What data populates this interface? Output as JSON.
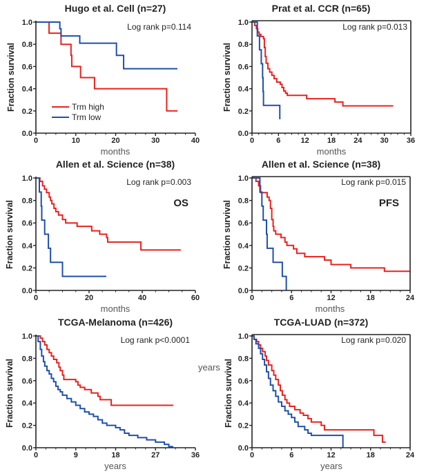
{
  "colors": {
    "high": "#e8211d",
    "low": "#1f4fa8",
    "axis": "#222222"
  },
  "legend": {
    "high": "Trm high",
    "low": "Trm low"
  },
  "stray_label": "years",
  "chart_data": [
    {
      "type": "line",
      "subtype": "kaplan-meier",
      "title": "Hugo et al. Cell (n=27)",
      "pvalue": "Log rank p=0.114",
      "annotation": "",
      "xlabel": "months",
      "ylabel": "Fraction survival",
      "xlim": [
        0,
        40
      ],
      "xticks": [
        0,
        10,
        20,
        30,
        40
      ],
      "ylim": [
        0,
        1
      ],
      "yticks": [
        "0.0",
        "0.2",
        "0.4",
        "0.6",
        "0.8",
        "1.0"
      ],
      "series": [
        {
          "name": "Trm high",
          "end": 35.5,
          "steps": [
            [
              0,
              1
            ],
            [
              3.3,
              0.9
            ],
            [
              6.3,
              0.8
            ],
            [
              8.8,
              0.7
            ],
            [
              9,
              0.6
            ],
            [
              11.2,
              0.5
            ],
            [
              14.7,
              0.4
            ],
            [
              32.8,
              0.2
            ]
          ]
        },
        {
          "name": "Trm low",
          "end": 35.5,
          "steps": [
            [
              0,
              1
            ],
            [
              6,
              0.94
            ],
            [
              6.3,
              0.875
            ],
            [
              11,
              0.81
            ],
            [
              20.2,
              0.7
            ],
            [
              22,
              0.58
            ]
          ]
        }
      ]
    },
    {
      "type": "line",
      "subtype": "kaplan-meier",
      "title": "Prat et al. CCR (n=65)",
      "pvalue": "Log rank p=0.013",
      "annotation": "",
      "xlabel": "months",
      "ylabel": "Fraction survival",
      "xlim": [
        0,
        36
      ],
      "xticks": [
        0,
        6,
        12,
        18,
        24,
        30,
        36
      ],
      "ylim": [
        0,
        1
      ],
      "yticks": [
        "0.0",
        "0.2",
        "0.4",
        "0.6",
        "0.8",
        "1.0"
      ],
      "series": [
        {
          "name": "Trm high",
          "end": 32,
          "steps": [
            [
              0,
              1
            ],
            [
              0.6,
              0.97
            ],
            [
              1,
              0.94
            ],
            [
              1.3,
              0.91
            ],
            [
              1.6,
              0.89
            ],
            [
              2,
              0.87
            ],
            [
              2.6,
              0.85
            ],
            [
              2.8,
              0.77
            ],
            [
              3,
              0.69
            ],
            [
              3.2,
              0.63
            ],
            [
              3.6,
              0.58
            ],
            [
              4,
              0.55
            ],
            [
              4.5,
              0.52
            ],
            [
              5,
              0.49
            ],
            [
              5.6,
              0.46
            ],
            [
              6.4,
              0.44
            ],
            [
              6.8,
              0.41
            ],
            [
              7.2,
              0.38
            ],
            [
              7.6,
              0.36
            ],
            [
              8,
              0.34
            ],
            [
              12.4,
              0.31
            ],
            [
              18.8,
              0.28
            ],
            [
              20.6,
              0.245
            ]
          ]
        },
        {
          "name": "Trm low",
          "end": 6.3,
          "steps": [
            [
              0,
              1
            ],
            [
              1.2,
              0.875
            ],
            [
              1.7,
              0.75
            ],
            [
              2.1,
              0.625
            ],
            [
              2.4,
              0.5
            ],
            [
              2.5,
              0.375
            ],
            [
              2.6,
              0.25
            ],
            [
              6.3,
              0.125
            ]
          ]
        }
      ]
    },
    {
      "type": "line",
      "subtype": "kaplan-meier",
      "title": "Allen et al. Science (n=38)",
      "pvalue": "Log rank p=0.003",
      "annotation": "OS",
      "xlabel": "months",
      "ylabel": "Fraction survival",
      "xlim": [
        0,
        60
      ],
      "xticks": [
        0,
        20,
        40,
        60
      ],
      "ylim": [
        0,
        1
      ],
      "yticks": [
        "0.0",
        "0.2",
        "0.4",
        "0.6",
        "0.8",
        "1.0"
      ],
      "series": [
        {
          "name": "Trm high",
          "end": 54.5,
          "steps": [
            [
              0,
              1
            ],
            [
              1.5,
              0.97
            ],
            [
              2.5,
              0.93
            ],
            [
              3.2,
              0.9
            ],
            [
              4,
              0.87
            ],
            [
              5,
              0.83
            ],
            [
              5.5,
              0.8
            ],
            [
              6,
              0.77
            ],
            [
              6.8,
              0.73
            ],
            [
              7.5,
              0.7
            ],
            [
              8.5,
              0.67
            ],
            [
              10,
              0.63
            ],
            [
              11.2,
              0.6
            ],
            [
              15.5,
              0.57
            ],
            [
              21,
              0.53
            ],
            [
              24,
              0.5
            ],
            [
              26.6,
              0.47
            ],
            [
              27,
              0.43
            ],
            [
              39.5,
              0.36
            ]
          ]
        },
        {
          "name": "Trm low",
          "end": 26.5,
          "steps": [
            [
              0,
              1
            ],
            [
              1.3,
              0.875
            ],
            [
              2,
              0.75
            ],
            [
              2.2,
              0.625
            ],
            [
              3.3,
              0.5
            ],
            [
              4.7,
              0.375
            ],
            [
              5.5,
              0.25
            ],
            [
              10,
              0.125
            ]
          ]
        }
      ]
    },
    {
      "type": "line",
      "subtype": "kaplan-meier",
      "title": "Allen et al. Science (n=38)",
      "pvalue": "Log rank p=0.015",
      "annotation": "PFS",
      "xlabel": "months",
      "ylabel": "Fraction survival",
      "xlim": [
        0,
        24
      ],
      "xticks": [
        0,
        6,
        12,
        18,
        24
      ],
      "ylim": [
        0,
        1
      ],
      "yticks": [
        "0.0",
        "0.2",
        "0.4",
        "0.6",
        "0.8",
        "1.0"
      ],
      "series": [
        {
          "name": "Trm high",
          "end": 24,
          "steps": [
            [
              0,
              1
            ],
            [
              0.6,
              0.97
            ],
            [
              1,
              0.93
            ],
            [
              1.3,
              0.87
            ],
            [
              2.3,
              0.83
            ],
            [
              2.6,
              0.8
            ],
            [
              2.8,
              0.73
            ],
            [
              3,
              0.63
            ],
            [
              3.2,
              0.57
            ],
            [
              3.3,
              0.53
            ],
            [
              3.6,
              0.5
            ],
            [
              4.4,
              0.47
            ],
            [
              5,
              0.43
            ],
            [
              5.3,
              0.4
            ],
            [
              6.3,
              0.37
            ],
            [
              6.8,
              0.33
            ],
            [
              8,
              0.3
            ],
            [
              11,
              0.27
            ],
            [
              12,
              0.23
            ],
            [
              15,
              0.2
            ],
            [
              20.1,
              0.17
            ]
          ]
        },
        {
          "name": "Trm low",
          "end": 5.2,
          "steps": [
            [
              0,
              1
            ],
            [
              1.2,
              0.875
            ],
            [
              1.5,
              0.75
            ],
            [
              1.7,
              0.625
            ],
            [
              2.2,
              0.5
            ],
            [
              2.3,
              0.375
            ],
            [
              3.2,
              0.25
            ],
            [
              4.6,
              0.125
            ],
            [
              5.2,
              0
            ]
          ]
        }
      ]
    },
    {
      "type": "line",
      "subtype": "kaplan-meier",
      "title": "TCGA-Melanoma (n=426)",
      "pvalue": "Log rank p<0.0001",
      "annotation": "",
      "xlabel": "years",
      "ylabel": "Fraction survival",
      "xlim": [
        0,
        36
      ],
      "xticks": [
        0,
        9,
        18,
        27,
        36
      ],
      "ylim": [
        0,
        1
      ],
      "yticks": [
        "0.0",
        "0.2",
        "0.4",
        "0.6",
        "0.8",
        "1.0"
      ],
      "series": [
        {
          "name": "Trm high",
          "end": 31,
          "steps": [
            [
              0,
              1
            ],
            [
              1,
              0.98
            ],
            [
              1.5,
              0.95
            ],
            [
              2,
              0.92
            ],
            [
              2.5,
              0.88
            ],
            [
              3,
              0.85
            ],
            [
              3.5,
              0.82
            ],
            [
              4,
              0.79
            ],
            [
              4.7,
              0.76
            ],
            [
              5.2,
              0.72
            ],
            [
              5.5,
              0.69
            ],
            [
              6,
              0.65
            ],
            [
              6.3,
              0.61
            ],
            [
              9,
              0.59
            ],
            [
              9.5,
              0.56
            ],
            [
              10,
              0.54
            ],
            [
              11,
              0.52
            ],
            [
              12.5,
              0.49
            ],
            [
              14,
              0.46
            ],
            [
              14.5,
              0.43
            ],
            [
              17,
              0.38
            ]
          ]
        },
        {
          "name": "Trm low",
          "end": 31,
          "steps": [
            [
              0,
              1
            ],
            [
              0.5,
              0.95
            ],
            [
              1,
              0.88
            ],
            [
              1.3,
              0.82
            ],
            [
              1.7,
              0.77
            ],
            [
              2,
              0.73
            ],
            [
              2.5,
              0.69
            ],
            [
              3,
              0.66
            ],
            [
              3.5,
              0.62
            ],
            [
              4,
              0.59
            ],
            [
              4.5,
              0.55
            ],
            [
              5,
              0.52
            ],
            [
              5.5,
              0.5
            ],
            [
              6,
              0.47
            ],
            [
              7,
              0.44
            ],
            [
              8,
              0.41
            ],
            [
              9,
              0.38
            ],
            [
              10,
              0.35
            ],
            [
              11,
              0.32
            ],
            [
              12,
              0.3
            ],
            [
              13,
              0.28
            ],
            [
              14,
              0.25
            ],
            [
              15,
              0.22
            ],
            [
              16,
              0.2
            ],
            [
              18,
              0.18
            ],
            [
              19,
              0.16
            ],
            [
              20,
              0.13
            ],
            [
              21,
              0.11
            ],
            [
              23,
              0.09
            ],
            [
              25,
              0.07
            ],
            [
              27,
              0.05
            ],
            [
              29,
              0.03
            ],
            [
              30,
              0.01
            ]
          ]
        }
      ]
    },
    {
      "type": "line",
      "subtype": "kaplan-meier",
      "title": "TCGA-LUAD (n=372)",
      "pvalue": "Log rank p=0.020",
      "annotation": "",
      "xlabel": "years",
      "ylabel": "Fraction survival",
      "xlim": [
        0,
        24
      ],
      "xticks": [
        0,
        6,
        12,
        18,
        24
      ],
      "ylim": [
        0,
        1
      ],
      "yticks": [
        "0.0",
        "0.2",
        "0.4",
        "0.6",
        "0.8",
        "1.0"
      ],
      "series": [
        {
          "name": "Trm high",
          "end": 20.3,
          "steps": [
            [
              0,
              1
            ],
            [
              0.3,
              0.97
            ],
            [
              0.7,
              0.95
            ],
            [
              1,
              0.92
            ],
            [
              1.3,
              0.89
            ],
            [
              1.6,
              0.86
            ],
            [
              2,
              0.82
            ],
            [
              2.2,
              0.78
            ],
            [
              2.5,
              0.74
            ],
            [
              3,
              0.69
            ],
            [
              3.3,
              0.65
            ],
            [
              3.6,
              0.61
            ],
            [
              4,
              0.56
            ],
            [
              4.3,
              0.51
            ],
            [
              4.6,
              0.47
            ],
            [
              5,
              0.43
            ],
            [
              5.3,
              0.4
            ],
            [
              5.7,
              0.37
            ],
            [
              6.5,
              0.34
            ],
            [
              7.3,
              0.31
            ],
            [
              7.8,
              0.29
            ],
            [
              8.5,
              0.26
            ],
            [
              9,
              0.23
            ],
            [
              10.5,
              0.2
            ],
            [
              11,
              0.16
            ],
            [
              18.5,
              0.11
            ],
            [
              19.8,
              0.05
            ]
          ]
        },
        {
          "name": "Trm low",
          "end": 13.8,
          "steps": [
            [
              0,
              1
            ],
            [
              0.3,
              0.97
            ],
            [
              0.6,
              0.93
            ],
            [
              1,
              0.89
            ],
            [
              1.3,
              0.84
            ],
            [
              1.6,
              0.79
            ],
            [
              1.9,
              0.74
            ],
            [
              2.2,
              0.68
            ],
            [
              2.5,
              0.62
            ],
            [
              2.8,
              0.56
            ],
            [
              3.2,
              0.51
            ],
            [
              3.6,
              0.46
            ],
            [
              4,
              0.41
            ],
            [
              4.5,
              0.37
            ],
            [
              5,
              0.33
            ],
            [
              5.5,
              0.3
            ],
            [
              6,
              0.27
            ],
            [
              6.5,
              0.23
            ],
            [
              7,
              0.19
            ],
            [
              8,
              0.16
            ],
            [
              8.5,
              0.13
            ],
            [
              9,
              0.11
            ],
            [
              13.8,
              0
            ]
          ]
        }
      ]
    }
  ]
}
